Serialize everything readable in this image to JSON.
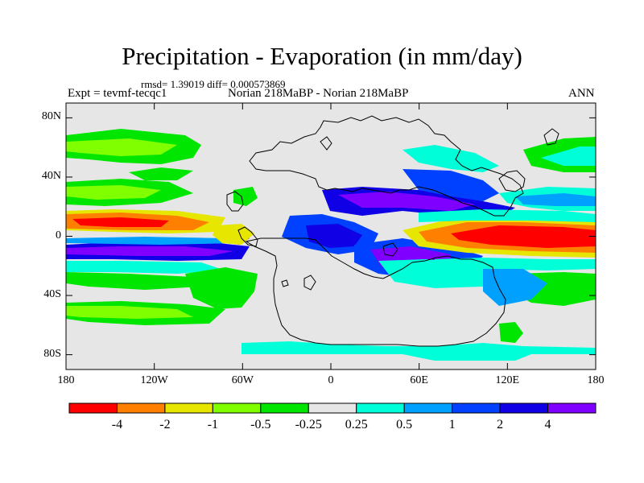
{
  "header": {
    "title": "Precipitation - Evaporation (in mm/day)",
    "stats": "rmsd= 1.39019 diff= 0.000573869",
    "experiment": "Expt = tevmf-tecqc1",
    "runs": "Norian 218MaBP - Norian 218MaBP",
    "season": "ANN"
  },
  "axes": {
    "y_ticks": [
      {
        "label": "80N",
        "lat": 80
      },
      {
        "label": "40N",
        "lat": 40
      },
      {
        "label": "0",
        "lat": 0
      },
      {
        "label": "40S",
        "lat": -40
      },
      {
        "label": "80S",
        "lat": -80
      }
    ],
    "x_ticks": [
      {
        "label": "180",
        "lon": -180
      },
      {
        "label": "120W",
        "lon": -120
      },
      {
        "label": "60W",
        "lon": -60
      },
      {
        "label": "0",
        "lon": 0
      },
      {
        "label": "60E",
        "lon": 60
      },
      {
        "label": "120E",
        "lon": 120
      },
      {
        "label": "180",
        "lon": 180
      }
    ],
    "lat_range": [
      -90,
      90
    ],
    "lon_range": [
      -180,
      180
    ]
  },
  "colorbar": {
    "colors": [
      "#ff0000",
      "#ff8000",
      "#e6e600",
      "#80ff00",
      "#00e600",
      "#e6e6e6",
      "#00ffd9",
      "#00a0ff",
      "#0040ff",
      "#1000e6",
      "#8000ff"
    ],
    "labels": [
      "-4",
      "-2",
      "-1",
      "-0.5",
      "-0.25",
      "0.25",
      "0.5",
      "1",
      "2",
      "4"
    ]
  },
  "map": {
    "background_color": "#e6e6e6",
    "coastline_color": "#000000"
  }
}
